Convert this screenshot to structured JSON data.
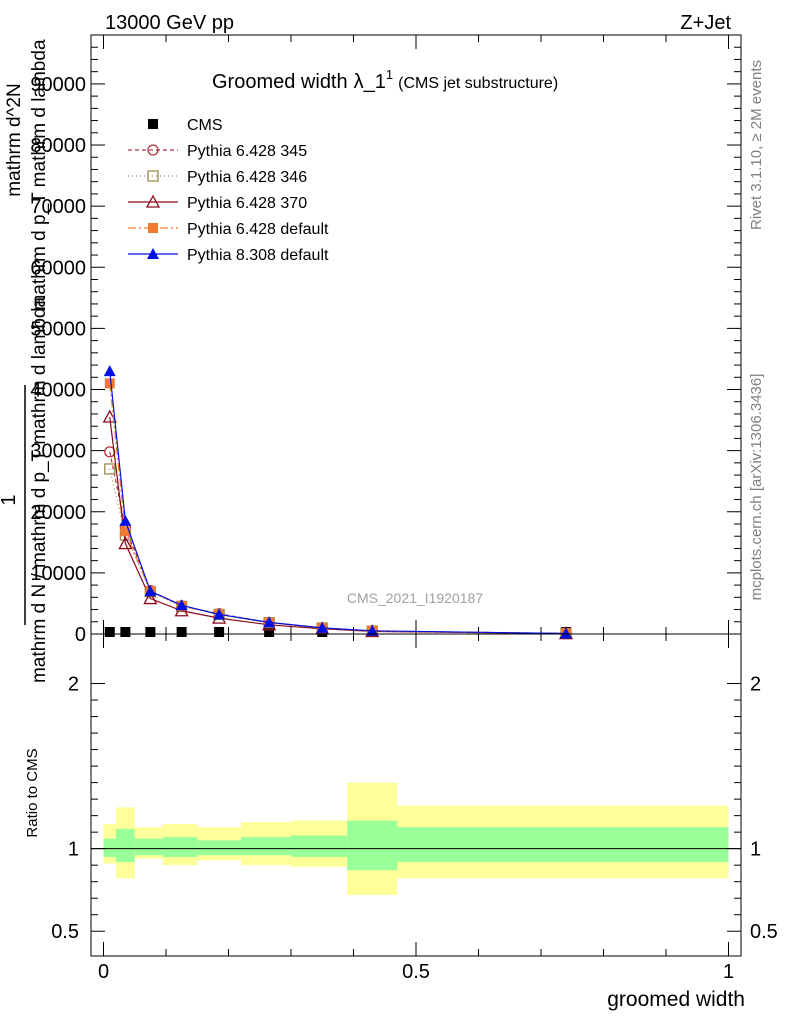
{
  "header": {
    "left": "13000 GeV pp",
    "right": "Z+Jet"
  },
  "side_labels": {
    "rivet": "Rivet 3.1.10, ≥ 2M events",
    "mcplots": "mcplots.cern.ch [arXiv:1306.3436]"
  },
  "watermark": "CMS_2021_I1920187",
  "chart_data": [
    {
      "type": "line",
      "title": "Groomed width",
      "title_symbol": "λ_1",
      "title_sup": "1",
      "subtitle": "(CMS jet substructure)",
      "ylabel_lines": [
        "1",
        "mathrm d N / mathrm d p_T mathrm d lambda",
        "mathrm d^2N",
        "mathrm d p_T mathrm d lambda"
      ],
      "ylim": [
        0,
        98000
      ],
      "xlim": [
        -0.02,
        1.02
      ],
      "yticks": [
        0,
        10000,
        20000,
        30000,
        40000,
        50000,
        60000,
        70000,
        80000,
        90000
      ],
      "ytick_labels": [
        "0",
        "10000",
        "20000",
        "30000",
        "40000",
        "50000",
        "60000",
        "70000",
        "80000",
        "90000"
      ],
      "legend_position": "top-left",
      "series": [
        {
          "name": "CMS",
          "color": "#000000",
          "marker": "square-filled",
          "x": [
            0.01,
            0.035,
            0.075,
            0.125,
            0.185,
            0.265,
            0.35,
            0.43,
            0.74
          ],
          "y": [
            50,
            45,
            40,
            30,
            20,
            10,
            5,
            3,
            1
          ]
        },
        {
          "name": "Pythia 6.428 345",
          "color": "#b03040",
          "marker": "circle-open",
          "dash": "4,3",
          "x": [
            0.01,
            0.035,
            0.075,
            0.125,
            0.185,
            0.265,
            0.35,
            0.43,
            0.74
          ],
          "y": [
            29800,
            17500,
            7100,
            4600,
            3300,
            1900,
            1000,
            500,
            80
          ]
        },
        {
          "name": "Pythia 6.428 346",
          "color": "#9a8a50",
          "marker": "square-open",
          "dash": "1,3",
          "x": [
            0.01,
            0.035,
            0.075,
            0.125,
            0.185,
            0.265,
            0.35,
            0.43,
            0.74
          ],
          "y": [
            27000,
            16200,
            6900,
            4500,
            3200,
            1850,
            980,
            480,
            80
          ]
        },
        {
          "name": "Pythia 6.428 370",
          "color": "#8b0a1a",
          "marker": "triangle-open",
          "dash": "",
          "x": [
            0.01,
            0.035,
            0.075,
            0.125,
            0.185,
            0.265,
            0.35,
            0.43,
            0.74
          ],
          "y": [
            35500,
            14800,
            5800,
            3800,
            2600,
            1500,
            850,
            420,
            70
          ]
        },
        {
          "name": "Pythia 6.428 default",
          "color": "#f07a30",
          "marker": "square-filled",
          "dash": "8,3,2,3",
          "x": [
            0.01,
            0.035,
            0.075,
            0.125,
            0.185,
            0.265,
            0.35,
            0.43,
            0.74
          ],
          "y": [
            41000,
            16800,
            7000,
            4600,
            3200,
            1850,
            980,
            480,
            80
          ]
        },
        {
          "name": "Pythia 8.308 default",
          "color": "#0010e0",
          "marker": "triangle-filled",
          "dash": "",
          "x": [
            0.01,
            0.035,
            0.075,
            0.125,
            0.185,
            0.265,
            0.35,
            0.43,
            0.74
          ],
          "y": [
            43000,
            18500,
            7000,
            4700,
            3200,
            1900,
            1000,
            520,
            90
          ]
        }
      ]
    },
    {
      "type": "area",
      "ylabel": "Ratio to CMS",
      "xlabel": "groomed width",
      "ylim": [
        0.35,
        2.3
      ],
      "xlim": [
        -0.02,
        1.02
      ],
      "yticks": [
        0.5,
        1,
        2
      ],
      "ytick_labels": [
        "0.5",
        "1",
        "2"
      ],
      "xticks": [
        0,
        0.5,
        1
      ],
      "xtick_labels": [
        "0",
        "0.5",
        "1"
      ],
      "reference_line": 1,
      "bands": {
        "bins": [
          [
            0.0,
            0.02
          ],
          [
            0.02,
            0.05
          ],
          [
            0.05,
            0.095
          ],
          [
            0.095,
            0.15
          ],
          [
            0.15,
            0.22
          ],
          [
            0.22,
            0.3
          ],
          [
            0.3,
            0.39
          ],
          [
            0.39,
            0.47
          ],
          [
            0.47,
            1.0
          ]
        ],
        "inner": [
          [
            0.95,
            1.06
          ],
          [
            0.92,
            1.12
          ],
          [
            0.96,
            1.06
          ],
          [
            0.95,
            1.07
          ],
          [
            0.96,
            1.05
          ],
          [
            0.96,
            1.07
          ],
          [
            0.95,
            1.08
          ],
          [
            0.87,
            1.17
          ],
          [
            0.92,
            1.13
          ]
        ],
        "outer": [
          [
            0.91,
            1.15
          ],
          [
            0.82,
            1.25
          ],
          [
            0.94,
            1.13
          ],
          [
            0.9,
            1.15
          ],
          [
            0.93,
            1.13
          ],
          [
            0.9,
            1.16
          ],
          [
            0.89,
            1.17
          ],
          [
            0.72,
            1.4
          ],
          [
            0.82,
            1.26
          ]
        ],
        "inner_color": "#99ff99",
        "outer_color": "#ffff99"
      }
    }
  ]
}
